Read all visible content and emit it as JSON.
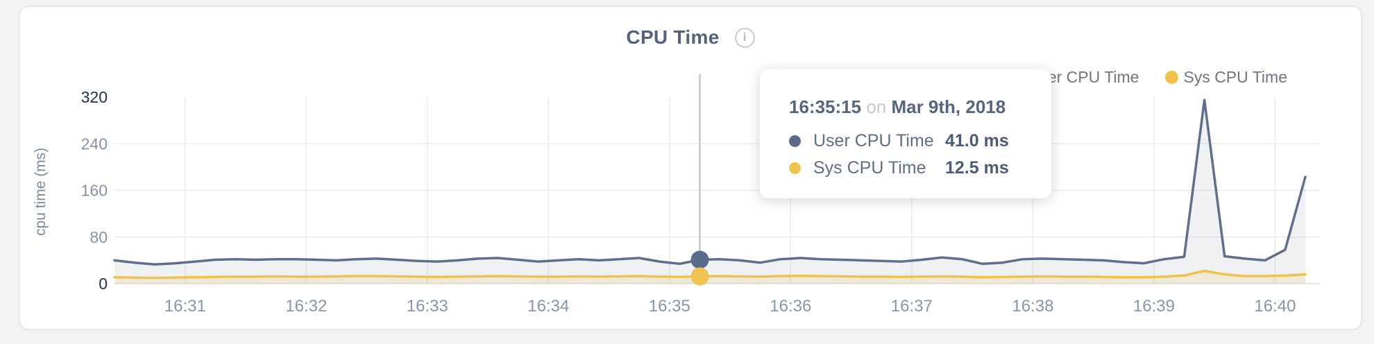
{
  "header": {
    "title": "CPU Time",
    "info_glyph": "i"
  },
  "legend": [
    {
      "label": "User CPU Time",
      "color": "#5f6e8c"
    },
    {
      "label": "Sys CPU Time",
      "color": "#f0c24b"
    }
  ],
  "tooltip": {
    "time": "16:35:15",
    "connector": "on",
    "date": "Mar 9th, 2018",
    "rows": [
      {
        "label": "User CPU Time",
        "value": "41.0 ms",
        "color": "#5a6a8c"
      },
      {
        "label": "Sys CPU Time",
        "value": "12.5 ms",
        "color": "#eec34f"
      }
    ]
  },
  "chart_data": {
    "type": "area",
    "title": "CPU Time",
    "xlabel": "",
    "ylabel": "cpu time (ms)",
    "ylim": [
      0,
      320
    ],
    "yticks": [
      0,
      80,
      160,
      240,
      320
    ],
    "xticks": [
      "16:31",
      "16:32",
      "16:33",
      "16:34",
      "16:35",
      "16:36",
      "16:37",
      "16:38",
      "16:39",
      "16:40"
    ],
    "x_start": "16:30:25",
    "x_interval_seconds": 10,
    "grid": true,
    "legend_position": "top-right",
    "selected": {
      "time": "16:35:15",
      "date": "Mar 9th, 2018",
      "user_ms": 41.0,
      "sys_ms": 12.5
    },
    "colors": {
      "grid": "#ebebee",
      "axis": "#e6e6e9",
      "crosshair": "#c2c5ca",
      "tick_dark": "#22304f",
      "tick_light": "#8492a6",
      "x_tick": "#8795a9"
    },
    "series": [
      {
        "name": "User CPU Time",
        "color": "#5f6e8c",
        "fill": "rgba(99,113,141,0.10)",
        "values": [
          40,
          36,
          33,
          35,
          38,
          41,
          42,
          41,
          42,
          42,
          41,
          40,
          42,
          43,
          41,
          39,
          38,
          40,
          43,
          44,
          41,
          38,
          40,
          42,
          40,
          42,
          44,
          38,
          34,
          41,
          42,
          40,
          36,
          42,
          44,
          42,
          41,
          40,
          39,
          38,
          41,
          45,
          42,
          34,
          36,
          42,
          43,
          42,
          41,
          40,
          37,
          35,
          42,
          46,
          315,
          47,
          43,
          40,
          58,
          183
        ]
      },
      {
        "name": "Sys CPU Time",
        "color": "#f0c24b",
        "fill": "rgba(238,195,80,0.16)",
        "values": [
          11,
          10.5,
          10,
          10.5,
          11,
          11.5,
          12,
          12,
          12.5,
          12,
          12,
          12.5,
          13,
          13,
          12.5,
          12,
          11.5,
          12,
          12.5,
          13,
          12.5,
          12,
          12,
          12.5,
          12,
          12.5,
          13,
          12,
          11.5,
          12.5,
          13,
          12.5,
          12,
          13,
          13.5,
          13,
          12.5,
          12,
          12,
          11.5,
          12,
          12.5,
          12,
          11,
          11.5,
          12,
          12.5,
          12,
          12,
          11.5,
          11,
          11,
          12,
          14,
          22,
          16,
          13,
          13,
          14,
          16
        ]
      }
    ]
  }
}
